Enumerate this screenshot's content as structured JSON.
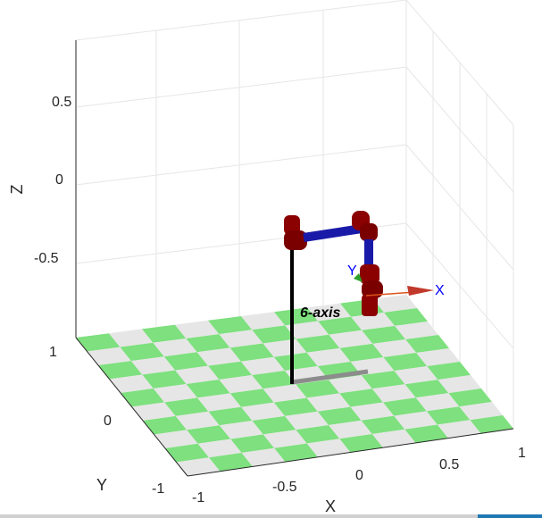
{
  "axes": {
    "x_label": "X",
    "y_label": "Y",
    "z_label": "Z",
    "x_ticks": [
      "-1",
      "-0.5",
      "0",
      "0.5",
      "1"
    ],
    "y_ticks": [
      "1",
      "0",
      "-1"
    ],
    "z_ticks": [
      "0.5",
      "0",
      "-0.5"
    ]
  },
  "robot": {
    "name": "6-axis",
    "frame_x": "X",
    "frame_y": "Y"
  }
}
